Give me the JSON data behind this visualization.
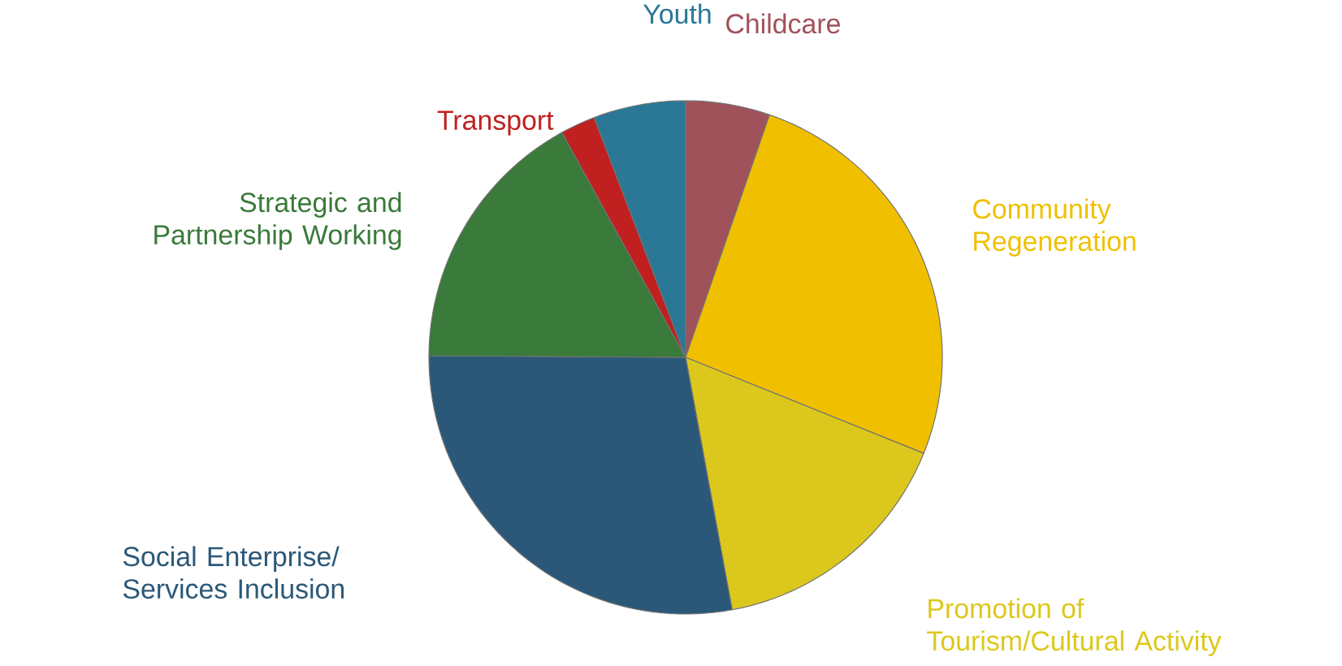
{
  "chart_data": {
    "type": "pie",
    "categories": [
      "Childcare",
      "Community Regeneration",
      "Promotion of Tourism/Cultural Activity",
      "Social Enterprise/ Services Inclusion",
      "Strategic and Partnership Working",
      "Transport",
      "Youth"
    ],
    "values": [
      5.3,
      25.8,
      16.0,
      28.0,
      16.9,
      2.2,
      5.8
    ],
    "colors": [
      "#a0525a",
      "#f0c000",
      "#dcc81c",
      "#2b5878",
      "#3a7a3a",
      "#c02020",
      "#2a7896"
    ]
  }
}
